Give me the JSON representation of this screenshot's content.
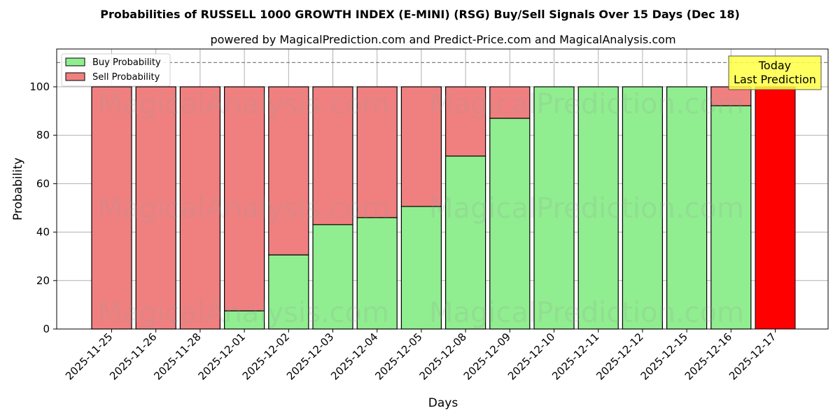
{
  "chart_data": {
    "type": "bar",
    "stacked": true,
    "title": "Probabilities of RUSSELL 1000 GROWTH INDEX (E-MINI) (RSG) Buy/Sell Signals Over 15 Days (Dec 18)",
    "subtitle": "powered by MagicalPrediction.com and Predict-Price.com and MagicalAnalysis.com",
    "xlabel": "Days",
    "ylabel": "Probability",
    "ylim": [
      0,
      115
    ],
    "yticks": [
      0,
      20,
      40,
      60,
      80,
      100
    ],
    "grid": true,
    "legend_position": "upper left",
    "categories": [
      "2025-11-25",
      "2025-11-26",
      "2025-11-28",
      "2025-12-01",
      "2025-12-02",
      "2025-12-03",
      "2025-12-04",
      "2025-12-05",
      "2025-12-08",
      "2025-12-09",
      "2025-12-10",
      "2025-12-11",
      "2025-12-12",
      "2025-12-15",
      "2025-12-16",
      "2025-12-17"
    ],
    "series": [
      {
        "name": "Buy Probability",
        "color": "#90ee90",
        "values": [
          0,
          0,
          0,
          7.5,
          30.6,
          43.1,
          46.0,
          50.6,
          71.4,
          87.0,
          100,
          100,
          100,
          100,
          92.2,
          0
        ]
      },
      {
        "name": "Sell Probability",
        "color": "#f08080",
        "values": [
          100,
          100,
          100,
          92.5,
          69.4,
          56.9,
          54.0,
          49.4,
          28.6,
          13.0,
          0,
          0,
          0,
          0,
          7.8,
          100
        ]
      }
    ],
    "highlight": {
      "category": "2025-12-17",
      "color": "#ff0000",
      "value": 100
    },
    "reference_line": {
      "y": 110,
      "style": "dashed",
      "color": "#808080"
    },
    "annotation": {
      "lines": [
        "Today",
        "Last Prediction"
      ],
      "bg": "#ffff44"
    },
    "watermarks": [
      "MagicalAnalysis.com",
      "MagicalPrediction.com"
    ]
  }
}
